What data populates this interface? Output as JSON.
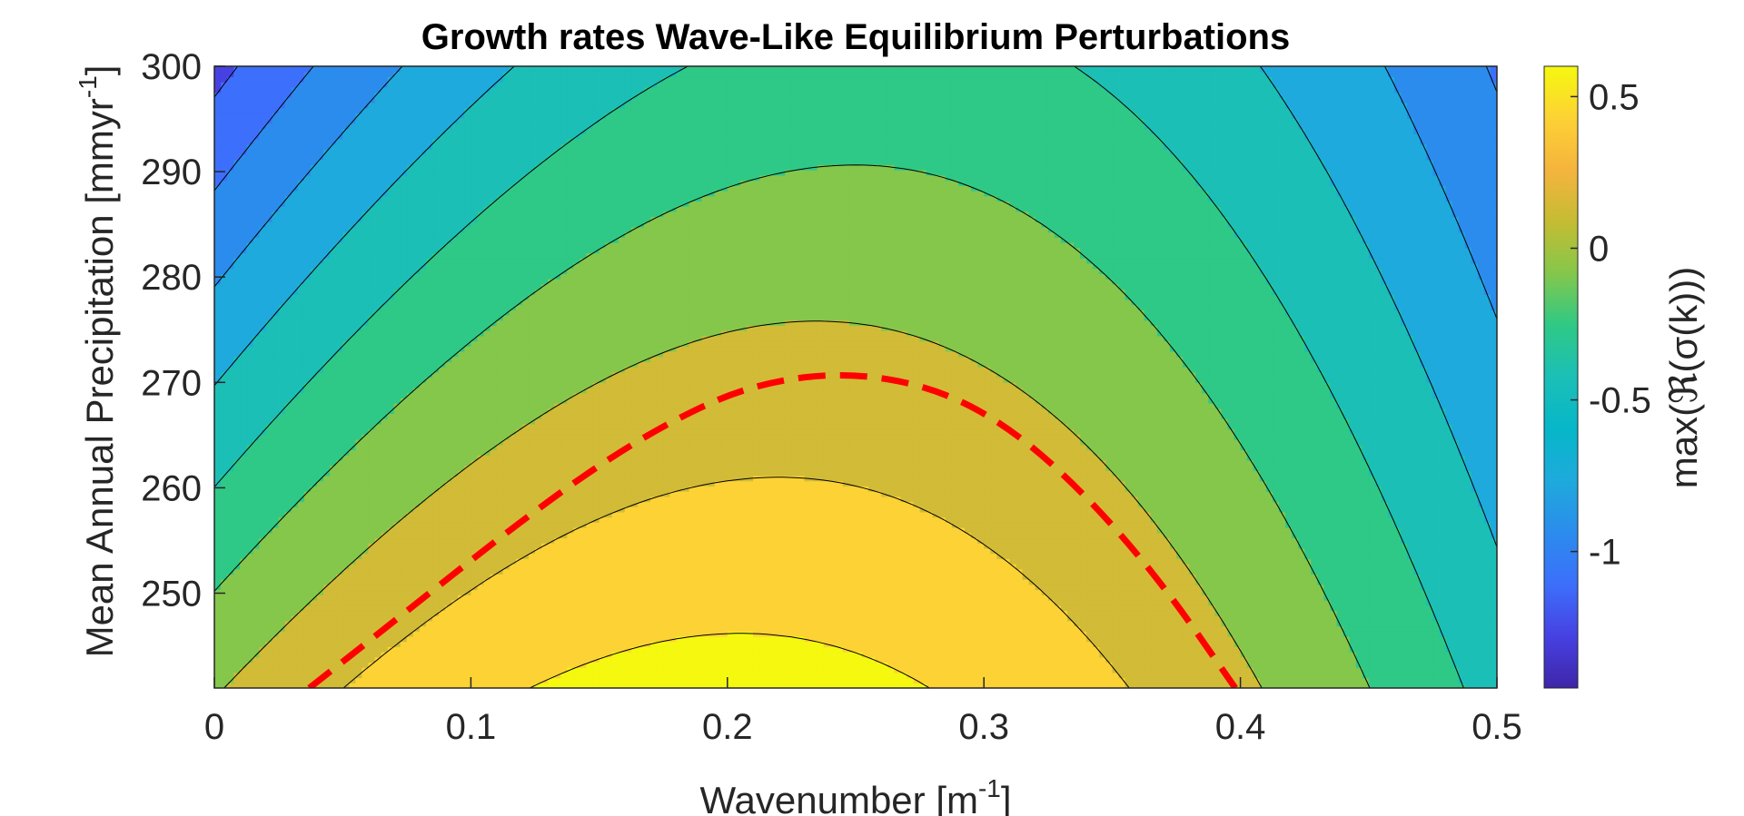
{
  "chart_data": {
    "type": "contour",
    "title": "Growth rates Wave-Like Equilibrium Perturbations",
    "xlabel": "Wavenumber [m",
    "xlabel_sup": "-1",
    "xlabel_tail": "]",
    "ylabel": "Mean Annual Precipitation [mmyr",
    "ylabel_sup": "-1",
    "ylabel_tail": "]",
    "colorbar_label": "max(ℜ(σ(k)))",
    "xlim": [
      0,
      0.5
    ],
    "ylim": [
      241,
      300
    ],
    "xticks": [
      0,
      0.1,
      0.2,
      0.3,
      0.4,
      0.5
    ],
    "xtick_labels": [
      "0",
      "0.1",
      "0.2",
      "0.3",
      "0.4",
      "0.5"
    ],
    "yticks": [
      250,
      260,
      270,
      280,
      290,
      300
    ],
    "ytick_labels": [
      "250",
      "260",
      "270",
      "280",
      "290",
      "300"
    ],
    "colorbar_range": [
      -1.45,
      0.6
    ],
    "colorbar_ticks": [
      0.5,
      0,
      -0.5,
      -1
    ],
    "colorbar_tick_labels": [
      "0.5",
      "0",
      "-0.5",
      "-1"
    ],
    "colormap": "parula",
    "contour_levels": [
      -1.25,
      -1.05,
      -0.85,
      -0.65,
      -0.45,
      -0.25,
      -0.05,
      0.15,
      0.35,
      0.55
    ],
    "level_fill_colors": [
      "#3e26a8",
      "#4741e3",
      "#3c6ffb",
      "#2b8ced",
      "#1eaadc",
      "#1bbfb6",
      "#2ec986",
      "#84c74b",
      "#d1bb37",
      "#fdd234",
      "#f5f80f"
    ],
    "zero_contour_points": [
      [
        0.037,
        241
      ],
      [
        0.06,
        245.4
      ],
      [
        0.09,
        251.2
      ],
      [
        0.12,
        256.9
      ],
      [
        0.15,
        262.2
      ],
      [
        0.18,
        266.6
      ],
      [
        0.21,
        269.8
      ],
      [
        0.245,
        271.0
      ],
      [
        0.28,
        269.6
      ],
      [
        0.31,
        265.8
      ],
      [
        0.34,
        259.3
      ],
      [
        0.37,
        250.8
      ],
      [
        0.398,
        241
      ]
    ],
    "zero_contour_style": {
      "color": "#ff0000",
      "dash": "dashed"
    }
  }
}
